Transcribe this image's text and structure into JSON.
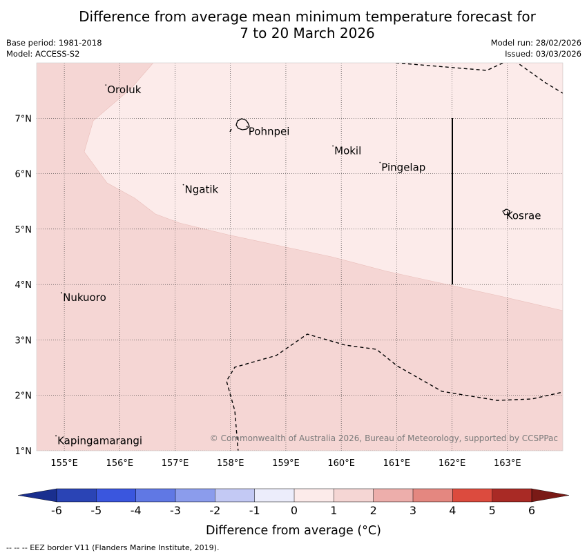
{
  "title": {
    "line1": "Difference from average mean minimum temperature forecast for",
    "line2": "7 to 20 March 2026"
  },
  "meta": {
    "base_period": "Base period: 1981-2018",
    "model": "Model: ACCESS-S2",
    "model_run": "Model run: 28/02/2026",
    "issued": "Issued: 03/03/2026"
  },
  "map": {
    "lon_range": [
      154.5,
      164
    ],
    "lat_range": [
      1,
      8
    ],
    "lon_ticks": [
      "155°E",
      "156°E",
      "157°E",
      "158°E",
      "159°E",
      "160°E",
      "161°E",
      "162°E",
      "163°E"
    ],
    "lat_ticks": [
      "1°N",
      "2°N",
      "3°N",
      "4°N",
      "5°N",
      "6°N",
      "7°N"
    ],
    "places": [
      {
        "name": "Oroluk",
        "lon": 155.75,
        "lat": 7.6
      },
      {
        "name": "Pohnpei",
        "lon": 158.3,
        "lat": 6.85
      },
      {
        "name": "Mokil",
        "lon": 159.85,
        "lat": 6.5
      },
      {
        "name": "Pingelap",
        "lon": 160.7,
        "lat": 6.2
      },
      {
        "name": "Ngatik",
        "lon": 157.15,
        "lat": 5.8
      },
      {
        "name": "Kosrae",
        "lon": 162.95,
        "lat": 5.33
      },
      {
        "name": "Nukuoro",
        "lon": 154.95,
        "lat": 3.85
      },
      {
        "name": "Kapingamarangi",
        "lon": 154.85,
        "lat": 1.27
      }
    ],
    "category_colors": {
      "zero_to_one": "#fcebea",
      "one_to_two": "#f5d6d4"
    },
    "copyright": "© Commonwealth of Australia 2026, Bureau of Meteorology, supported by CCSPPac"
  },
  "colorbar": {
    "title": "Difference from average (°C)",
    "labels": [
      "-6",
      "-5",
      "-4",
      "-3",
      "-2",
      "-1",
      "0",
      "1",
      "2",
      "3",
      "4",
      "5",
      "6"
    ],
    "colors": [
      "#1a2f8f",
      "#2a44b5",
      "#3a56de",
      "#6078e4",
      "#8b9cec",
      "#c3c9f4",
      "#ecedfb",
      "#fcebea",
      "#f5d6d4",
      "#edaeab",
      "#e48780",
      "#dc4b3e",
      "#a92a25",
      "#7a1a16"
    ]
  },
  "footer": {
    "eez_note": "-- -- -- EEZ border V11 (Flanders Marine Institute, 2019)."
  }
}
